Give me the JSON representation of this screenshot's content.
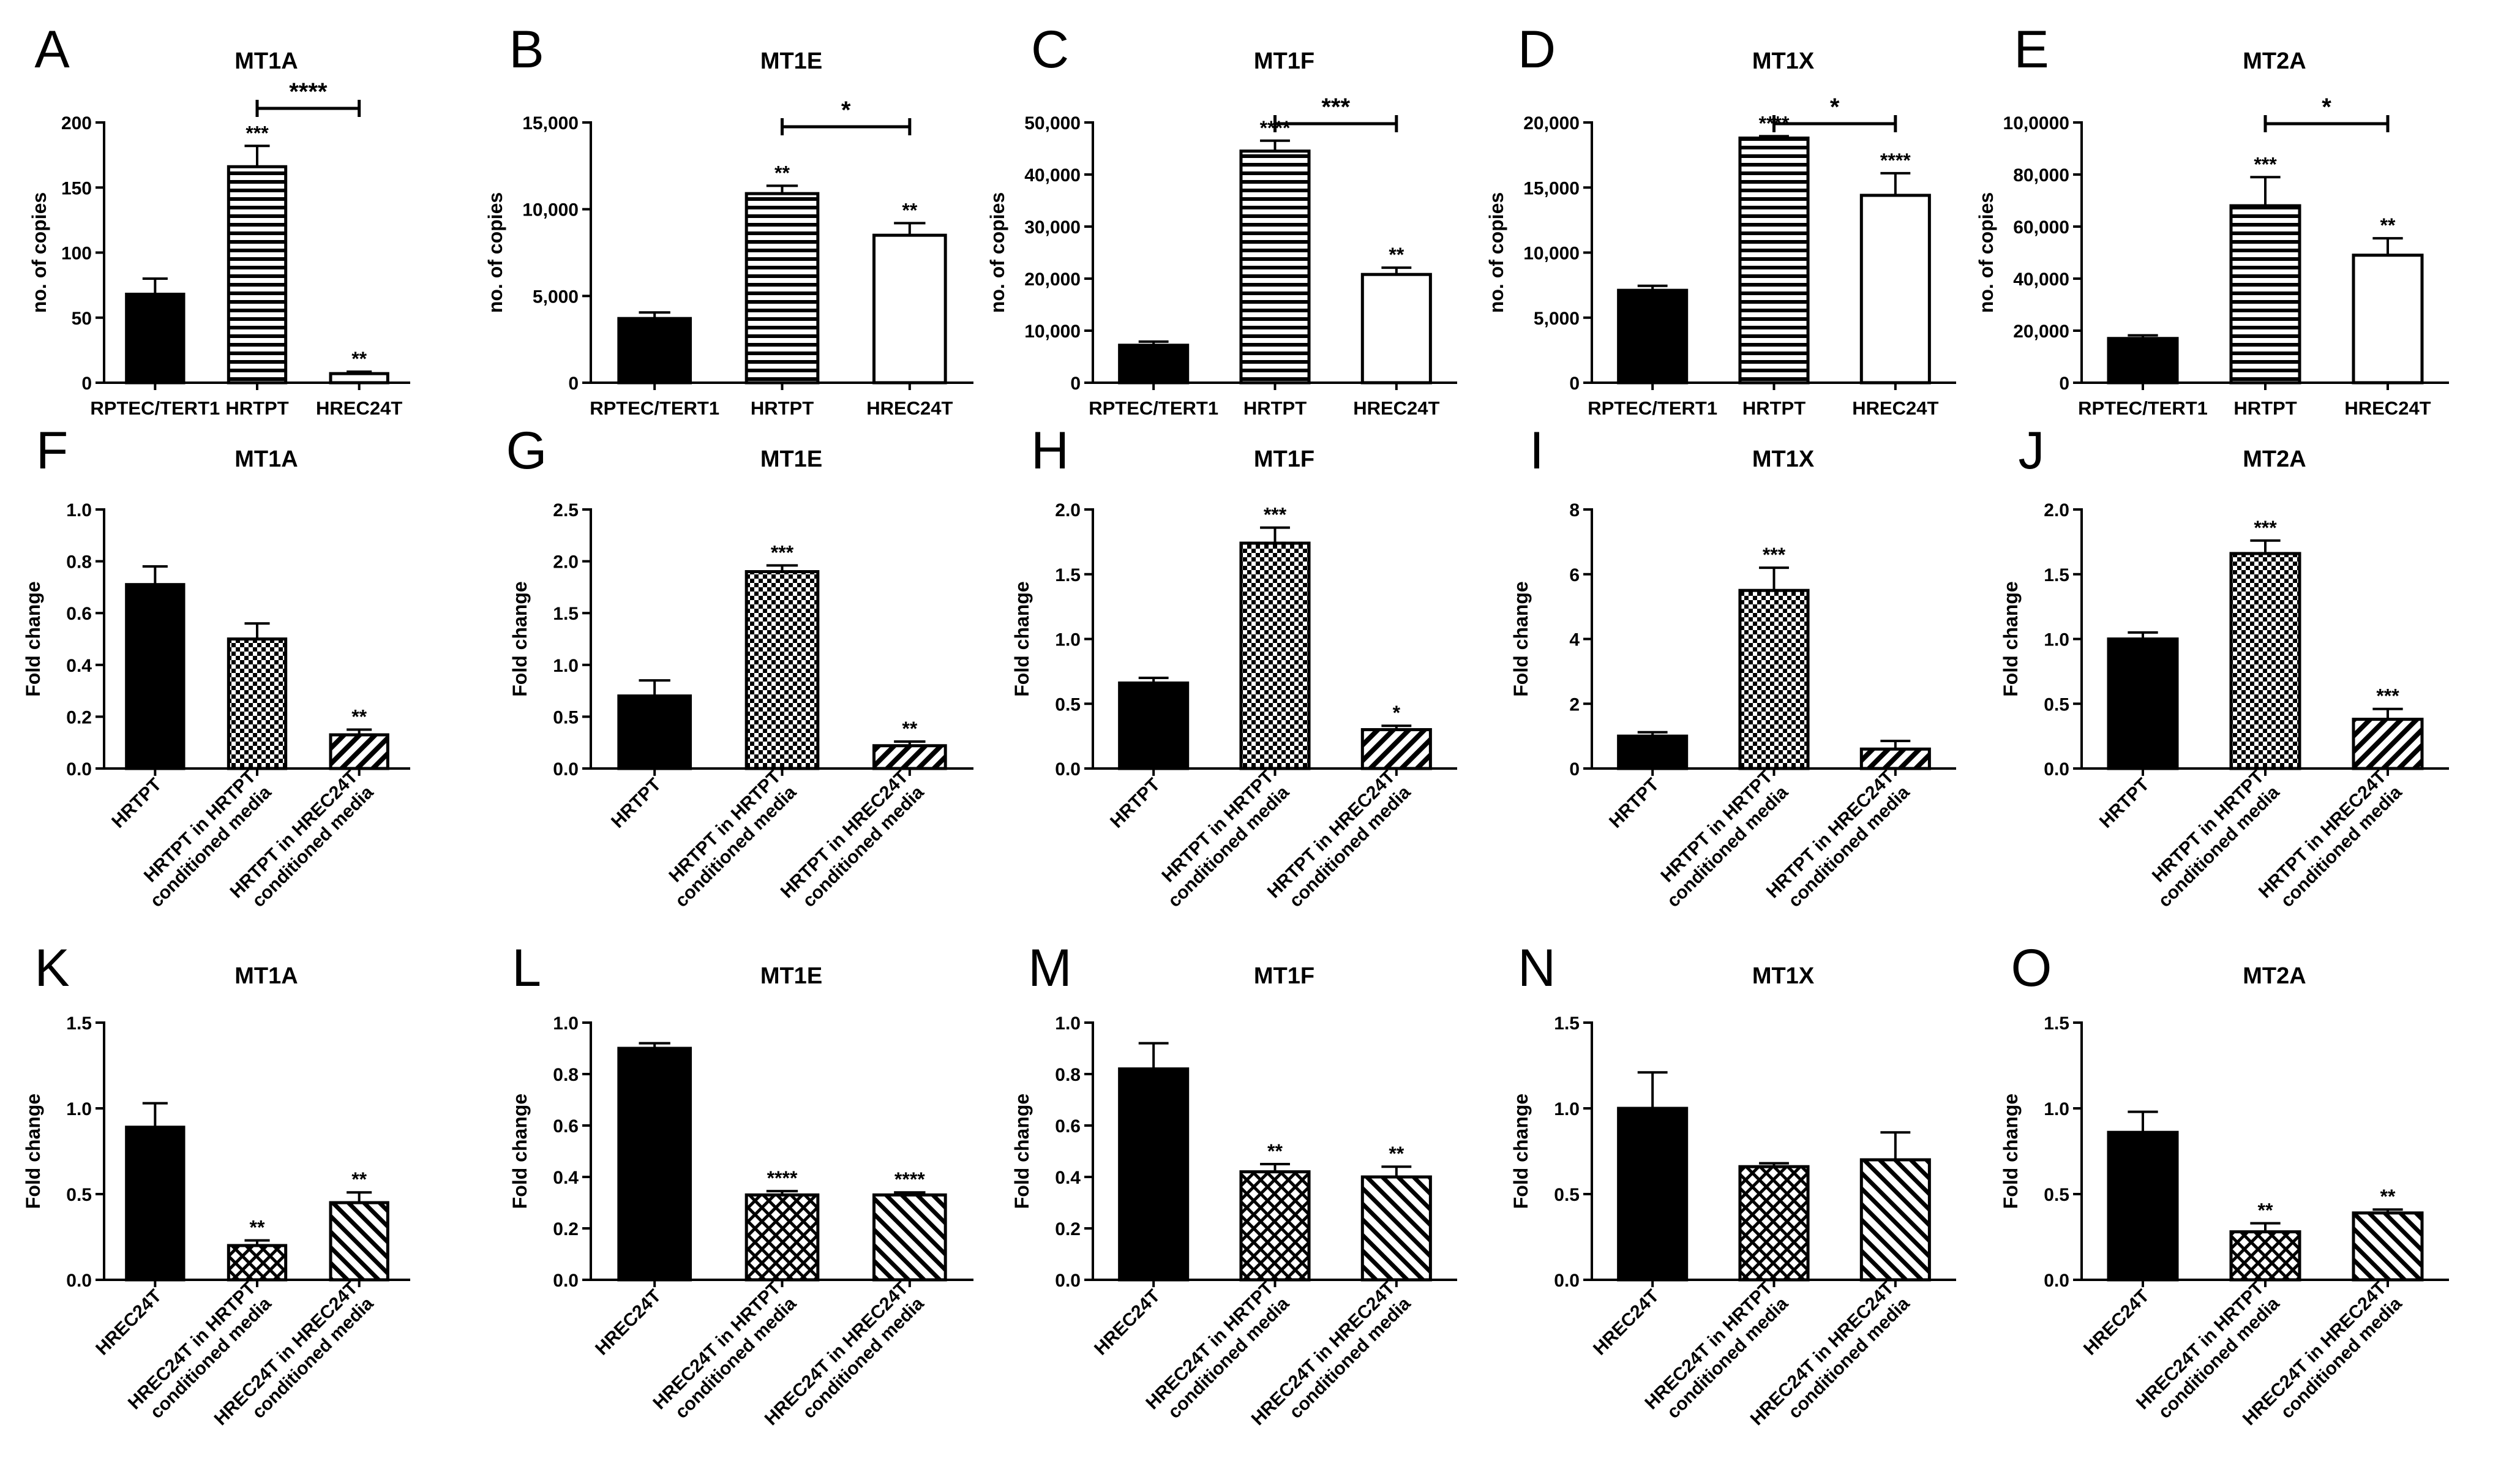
{
  "chart_data": [
    {
      "id": "A",
      "type": "bar",
      "title": "MT1A",
      "ylabel": "no. of copies",
      "ylim": [
        0,
        200
      ],
      "yticks": [
        0,
        50,
        100,
        150,
        200
      ],
      "ytick_labels": [
        "0",
        "50",
        "100",
        "150",
        "200"
      ],
      "categories": [
        "RPTEC/TERT1",
        "HRTPT",
        "HREC24T"
      ],
      "values": [
        68,
        166,
        7
      ],
      "errors": [
        12,
        16,
        1.5
      ],
      "stars": [
        "",
        "***",
        "**"
      ],
      "patterns": [
        "solid",
        "hlines",
        "white"
      ],
      "bracket": {
        "from": 1,
        "to": 2,
        "label": "****"
      },
      "rotate_labels": false
    },
    {
      "id": "B",
      "type": "bar",
      "title": "MT1E",
      "ylabel": "no. of copies",
      "ylim": [
        0,
        15000
      ],
      "yticks": [
        0,
        5000,
        10000,
        15000
      ],
      "ytick_labels": [
        "0",
        "5,000",
        "10,000",
        "15,000"
      ],
      "categories": [
        "RPTEC/TERT1",
        "HRTPT",
        "HREC24T"
      ],
      "values": [
        3700,
        10900,
        8500
      ],
      "errors": [
        350,
        450,
        700
      ],
      "stars": [
        "",
        "**",
        "**"
      ],
      "patterns": [
        "solid",
        "hlines",
        "white"
      ],
      "bracket": {
        "from": 1,
        "to": 2,
        "label": "*"
      },
      "rotate_labels": false
    },
    {
      "id": "C",
      "type": "bar",
      "title": "MT1F",
      "ylabel": "no. of copies",
      "ylim": [
        0,
        50000
      ],
      "yticks": [
        0,
        10000,
        20000,
        30000,
        40000,
        50000
      ],
      "ytick_labels": [
        "0",
        "10,000",
        "20,000",
        "30,000",
        "40,000",
        "50,000"
      ],
      "categories": [
        "RPTEC/TERT1",
        "HRTPT",
        "HREC24T"
      ],
      "values": [
        7200,
        44500,
        20800
      ],
      "errors": [
        700,
        2000,
        1300
      ],
      "stars": [
        "",
        "****",
        "**"
      ],
      "patterns": [
        "solid",
        "hlines",
        "white"
      ],
      "bracket": {
        "from": 1,
        "to": 2,
        "label": "***"
      },
      "rotate_labels": false
    },
    {
      "id": "D",
      "type": "bar",
      "title": "MT1X",
      "ylabel": "no. of copies",
      "ylim": [
        0,
        20000
      ],
      "yticks": [
        0,
        5000,
        10000,
        15000,
        20000
      ],
      "ytick_labels": [
        "0",
        "5,000",
        "10,000",
        "15,000",
        "20,000"
      ],
      "categories": [
        "RPTEC/TERT1",
        "HRTPT",
        "HREC24T"
      ],
      "values": [
        7100,
        18800,
        14400
      ],
      "errors": [
        350,
        150,
        1700
      ],
      "stars": [
        "",
        "****",
        "****"
      ],
      "patterns": [
        "solid",
        "hlines",
        "white"
      ],
      "bracket": {
        "from": 1,
        "to": 2,
        "label": "*"
      },
      "rotate_labels": false
    },
    {
      "id": "E",
      "type": "bar",
      "title": "MT2A",
      "ylabel": "no. of copies",
      "ylim": [
        0,
        100000
      ],
      "yticks": [
        0,
        20000,
        40000,
        60000,
        80000,
        100000
      ],
      "ytick_labels": [
        "0",
        "20,000",
        "40,000",
        "60,000",
        "80,000",
        "10,0000"
      ],
      "categories": [
        "RPTEC/TERT1",
        "HRTPT",
        "HREC24T"
      ],
      "values": [
        17000,
        68000,
        49000
      ],
      "errors": [
        1200,
        11000,
        6500
      ],
      "stars": [
        "",
        "***",
        "**"
      ],
      "patterns": [
        "solid",
        "hlines",
        "white"
      ],
      "bracket": {
        "from": 1,
        "to": 2,
        "label": "*"
      },
      "rotate_labels": false
    },
    {
      "id": "F",
      "type": "bar",
      "title": "MT1A",
      "ylabel": "Fold change",
      "ylim": [
        0,
        1.0
      ],
      "yticks": [
        0,
        0.2,
        0.4,
        0.6,
        0.8,
        1.0
      ],
      "ytick_labels": [
        "0.0",
        "0.2",
        "0.4",
        "0.6",
        "0.8",
        "1.0"
      ],
      "categories": [
        "HRTPT",
        "HRTPT in HRTPT|conditioned media",
        "HRTPT in HREC24T|conditioned media"
      ],
      "values": [
        0.71,
        0.5,
        0.13
      ],
      "errors": [
        0.07,
        0.06,
        0.02
      ],
      "stars": [
        "",
        "",
        "**"
      ],
      "patterns": [
        "solid",
        "checker",
        "diag"
      ],
      "rotate_labels": true
    },
    {
      "id": "G",
      "type": "bar",
      "title": "MT1E",
      "ylabel": "Fold change",
      "ylim": [
        0,
        2.5
      ],
      "yticks": [
        0,
        0.5,
        1.0,
        1.5,
        2.0,
        2.5
      ],
      "ytick_labels": [
        "0.0",
        "0.5",
        "1.0",
        "1.5",
        "2.0",
        "2.5"
      ],
      "categories": [
        "HRTPT",
        "HRTPT in HRTPT|conditioned media",
        "HRTPT in HREC24T|conditioned media"
      ],
      "values": [
        0.7,
        1.9,
        0.22
      ],
      "errors": [
        0.15,
        0.06,
        0.04
      ],
      "stars": [
        "",
        "***",
        "**"
      ],
      "patterns": [
        "solid",
        "checker",
        "diag"
      ],
      "rotate_labels": true
    },
    {
      "id": "H",
      "type": "bar",
      "title": "MT1F",
      "ylabel": "Fold change",
      "ylim": [
        0,
        2.0
      ],
      "yticks": [
        0,
        0.5,
        1.0,
        1.5,
        2.0
      ],
      "ytick_labels": [
        "0.0",
        "0.5",
        "1.0",
        "1.5",
        "2.0"
      ],
      "categories": [
        "HRTPT",
        "HRTPT in HRTPT|conditioned media",
        "HRTPT in HREC24T|conditioned media"
      ],
      "values": [
        0.66,
        1.74,
        0.3
      ],
      "errors": [
        0.04,
        0.12,
        0.03
      ],
      "stars": [
        "",
        "***",
        "*"
      ],
      "patterns": [
        "solid",
        "checker",
        "diag"
      ],
      "rotate_labels": true
    },
    {
      "id": "I",
      "type": "bar",
      "title": "MT1X",
      "ylabel": "Fold change",
      "ylim": [
        0,
        8
      ],
      "yticks": [
        0,
        2,
        4,
        6,
        8
      ],
      "ytick_labels": [
        "0",
        "2",
        "4",
        "6",
        "8"
      ],
      "categories": [
        "HRTPT",
        "HRTPT in HRTPT|conditioned media",
        "HRTPT in HREC24T|conditioned media"
      ],
      "values": [
        1.0,
        5.5,
        0.6
      ],
      "errors": [
        0.12,
        0.7,
        0.25
      ],
      "stars": [
        "",
        "***",
        ""
      ],
      "patterns": [
        "solid",
        "checker",
        "diag"
      ],
      "rotate_labels": true
    },
    {
      "id": "J",
      "type": "bar",
      "title": "MT2A",
      "ylabel": "Fold change",
      "ylim": [
        0,
        2.0
      ],
      "yticks": [
        0,
        0.5,
        1.0,
        1.5,
        2.0
      ],
      "ytick_labels": [
        "0.0",
        "0.5",
        "1.0",
        "1.5",
        "2.0"
      ],
      "categories": [
        "HRTPT",
        "HRTPT in HRTPT|conditioned media",
        "HRTPT in HREC24T|conditioned media"
      ],
      "values": [
        1.0,
        1.66,
        0.38
      ],
      "errors": [
        0.05,
        0.1,
        0.08
      ],
      "stars": [
        "",
        "***",
        "***"
      ],
      "patterns": [
        "solid",
        "checker",
        "diag"
      ],
      "rotate_labels": true
    },
    {
      "id": "K",
      "type": "bar",
      "title": "MT1A",
      "ylabel": "Fold change",
      "ylim": [
        0,
        1.5
      ],
      "yticks": [
        0,
        0.5,
        1.0,
        1.5
      ],
      "ytick_labels": [
        "0.0",
        "0.5",
        "1.0",
        "1.5"
      ],
      "categories": [
        "HREC24T",
        "HREC24T in HRTPT|conditioned media",
        "HREC24T in HREC24T|conditioned media"
      ],
      "values": [
        0.89,
        0.2,
        0.45
      ],
      "errors": [
        0.14,
        0.03,
        0.06
      ],
      "stars": [
        "",
        "**",
        "**"
      ],
      "patterns": [
        "solid",
        "crosshatch",
        "diagback"
      ],
      "rotate_labels": true
    },
    {
      "id": "L",
      "type": "bar",
      "title": "MT1E",
      "ylabel": "Fold change",
      "ylim": [
        0,
        1.0
      ],
      "yticks": [
        0,
        0.2,
        0.4,
        0.6,
        0.8,
        1.0
      ],
      "ytick_labels": [
        "0.0",
        "0.2",
        "0.4",
        "0.6",
        "0.8",
        "1.0"
      ],
      "categories": [
        "HREC24T",
        "HREC24T in HRTPT|conditioned media",
        "HREC24T in HREC24T|conditioned media"
      ],
      "values": [
        0.9,
        0.33,
        0.33
      ],
      "errors": [
        0.02,
        0.015,
        0.01
      ],
      "stars": [
        "",
        "****",
        "****"
      ],
      "patterns": [
        "solid",
        "crosshatch",
        "diagback"
      ],
      "rotate_labels": true
    },
    {
      "id": "M",
      "type": "bar",
      "title": "MT1F",
      "ylabel": "Fold change",
      "ylim": [
        0,
        1.0
      ],
      "yticks": [
        0,
        0.2,
        0.4,
        0.6,
        0.8,
        1.0
      ],
      "ytick_labels": [
        "0.0",
        "0.2",
        "0.4",
        "0.6",
        "0.8",
        "1.0"
      ],
      "categories": [
        "HREC24T",
        "HREC24T in HRTPT|conditioned media",
        "HREC24T in HREC24T|conditioned media"
      ],
      "values": [
        0.82,
        0.42,
        0.4
      ],
      "errors": [
        0.1,
        0.03,
        0.04
      ],
      "stars": [
        "",
        "**",
        "**"
      ],
      "patterns": [
        "solid",
        "crosshatch",
        "diagback"
      ],
      "rotate_labels": true
    },
    {
      "id": "N",
      "type": "bar",
      "title": "MT1X",
      "ylabel": "Fold change",
      "ylim": [
        0,
        1.5
      ],
      "yticks": [
        0,
        0.5,
        1.0,
        1.5
      ],
      "ytick_labels": [
        "0.0",
        "0.5",
        "1.0",
        "1.5"
      ],
      "categories": [
        "HREC24T",
        "HREC24T in HRTPT|conditioned media",
        "HREC24T in HREC24T|conditioned media"
      ],
      "values": [
        1.0,
        0.66,
        0.7
      ],
      "errors": [
        0.21,
        0.02,
        0.16
      ],
      "stars": [
        "",
        "",
        ""
      ],
      "patterns": [
        "solid",
        "crosshatch",
        "diagback"
      ],
      "rotate_labels": true
    },
    {
      "id": "O",
      "type": "bar",
      "title": "MT2A",
      "ylabel": "Fold change",
      "ylim": [
        0,
        1.5
      ],
      "yticks": [
        0,
        0.5,
        1.0,
        1.5
      ],
      "ytick_labels": [
        "0.0",
        "0.5",
        "1.0",
        "1.5"
      ],
      "categories": [
        "HREC24T",
        "HREC24T in HRTPT|conditioned media",
        "HREC24T in HREC24T|conditioned media"
      ],
      "values": [
        0.86,
        0.28,
        0.39
      ],
      "errors": [
        0.12,
        0.05,
        0.02
      ],
      "stars": [
        "",
        "**",
        "**"
      ],
      "patterns": [
        "solid",
        "crosshatch",
        "diagback"
      ],
      "rotate_labels": true
    }
  ]
}
